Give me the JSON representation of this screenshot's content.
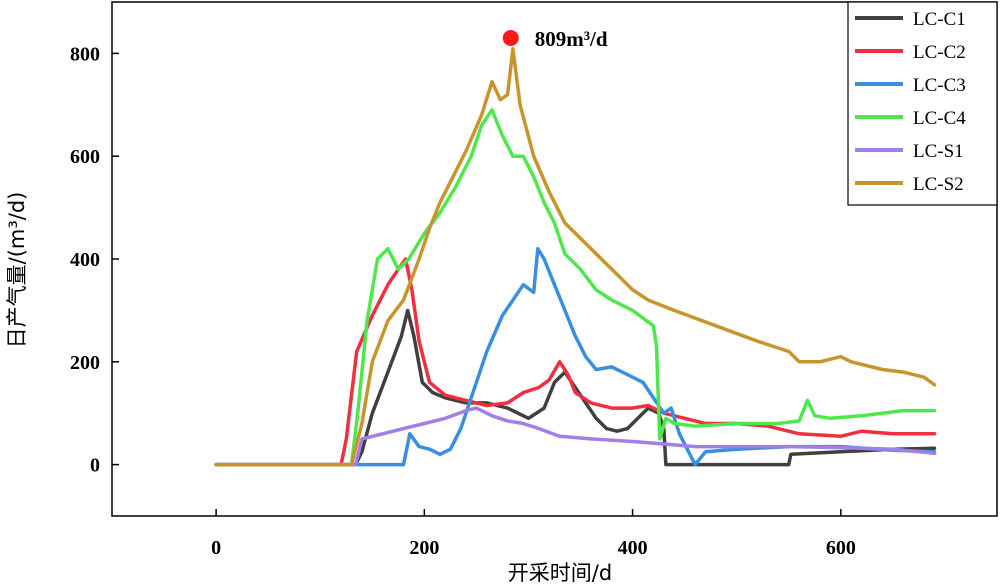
{
  "chart_data": {
    "type": "line",
    "xlabel": "开采时间/d",
    "ylabel": "日产气量/(m³/d)",
    "xlim": [
      -100,
      750
    ],
    "ylim": [
      -100,
      900
    ],
    "xticks": [
      0,
      200,
      400,
      600
    ],
    "yticks": [
      0,
      200,
      400,
      600,
      800
    ],
    "legend_position": "top-right",
    "grid": false,
    "annotation": {
      "text": "809m³/d",
      "x": 283,
      "y": 830,
      "marker_color": "#ff1a1a"
    },
    "series": [
      {
        "name": "LC-C1",
        "color": "#404040",
        "points": [
          [
            0,
            0
          ],
          [
            134,
            0
          ],
          [
            140,
            25
          ],
          [
            150,
            100
          ],
          [
            165,
            180
          ],
          [
            178,
            250
          ],
          [
            184,
            300
          ],
          [
            190,
            250
          ],
          [
            198,
            160
          ],
          [
            208,
            140
          ],
          [
            220,
            130
          ],
          [
            240,
            120
          ],
          [
            260,
            120
          ],
          [
            280,
            110
          ],
          [
            300,
            90
          ],
          [
            315,
            110
          ],
          [
            325,
            160
          ],
          [
            335,
            180
          ],
          [
            345,
            150
          ],
          [
            355,
            120
          ],
          [
            365,
            90
          ],
          [
            375,
            70
          ],
          [
            385,
            65
          ],
          [
            395,
            70
          ],
          [
            405,
            90
          ],
          [
            415,
            110
          ],
          [
            425,
            100
          ],
          [
            430,
            70
          ],
          [
            432,
            0
          ],
          [
            550,
            0
          ],
          [
            552,
            20
          ],
          [
            600,
            25
          ],
          [
            650,
            30
          ],
          [
            690,
            32
          ]
        ]
      },
      {
        "name": "LC-C2",
        "color": "#f03040",
        "points": [
          [
            0,
            0
          ],
          [
            120,
            0
          ],
          [
            125,
            50
          ],
          [
            135,
            220
          ],
          [
            150,
            290
          ],
          [
            165,
            350
          ],
          [
            175,
            380
          ],
          [
            182,
            400
          ],
          [
            188,
            340
          ],
          [
            195,
            240
          ],
          [
            205,
            160
          ],
          [
            220,
            135
          ],
          [
            240,
            125
          ],
          [
            260,
            115
          ],
          [
            280,
            120
          ],
          [
            295,
            140
          ],
          [
            310,
            150
          ],
          [
            320,
            165
          ],
          [
            330,
            200
          ],
          [
            338,
            175
          ],
          [
            345,
            140
          ],
          [
            360,
            120
          ],
          [
            380,
            110
          ],
          [
            400,
            110
          ],
          [
            415,
            115
          ],
          [
            420,
            110
          ],
          [
            430,
            100
          ],
          [
            450,
            90
          ],
          [
            470,
            80
          ],
          [
            500,
            80
          ],
          [
            530,
            75
          ],
          [
            560,
            60
          ],
          [
            600,
            55
          ],
          [
            620,
            65
          ],
          [
            650,
            60
          ],
          [
            690,
            60
          ]
        ]
      },
      {
        "name": "LC-C3",
        "color": "#3a8ee0",
        "points": [
          [
            0,
            0
          ],
          [
            180,
            0
          ],
          [
            186,
            60
          ],
          [
            195,
            35
          ],
          [
            205,
            30
          ],
          [
            215,
            20
          ],
          [
            225,
            30
          ],
          [
            235,
            70
          ],
          [
            245,
            130
          ],
          [
            260,
            220
          ],
          [
            275,
            290
          ],
          [
            285,
            320
          ],
          [
            295,
            350
          ],
          [
            305,
            335
          ],
          [
            309,
            420
          ],
          [
            315,
            400
          ],
          [
            325,
            350
          ],
          [
            335,
            300
          ],
          [
            345,
            250
          ],
          [
            355,
            210
          ],
          [
            365,
            185
          ],
          [
            380,
            190
          ],
          [
            395,
            175
          ],
          [
            410,
            160
          ],
          [
            420,
            130
          ],
          [
            430,
            100
          ],
          [
            437,
            110
          ],
          [
            445,
            60
          ],
          [
            455,
            20
          ],
          [
            460,
            0
          ],
          [
            470,
            25
          ],
          [
            500,
            30
          ],
          [
            550,
            35
          ],
          [
            600,
            35
          ],
          [
            650,
            28
          ],
          [
            690,
            25
          ]
        ]
      },
      {
        "name": "LC-C4",
        "color": "#4ee84e",
        "points": [
          [
            0,
            0
          ],
          [
            130,
            0
          ],
          [
            136,
            100
          ],
          [
            145,
            280
          ],
          [
            155,
            400
          ],
          [
            165,
            420
          ],
          [
            175,
            380
          ],
          [
            185,
            400
          ],
          [
            200,
            450
          ],
          [
            215,
            490
          ],
          [
            230,
            540
          ],
          [
            245,
            600
          ],
          [
            255,
            660
          ],
          [
            265,
            690
          ],
          [
            275,
            640
          ],
          [
            285,
            600
          ],
          [
            295,
            600
          ],
          [
            305,
            560
          ],
          [
            315,
            510
          ],
          [
            325,
            470
          ],
          [
            335,
            410
          ],
          [
            350,
            380
          ],
          [
            365,
            340
          ],
          [
            380,
            320
          ],
          [
            400,
            300
          ],
          [
            420,
            270
          ],
          [
            423,
            230
          ],
          [
            426,
            50
          ],
          [
            432,
            90
          ],
          [
            440,
            80
          ],
          [
            460,
            75
          ],
          [
            500,
            80
          ],
          [
            540,
            80
          ],
          [
            560,
            85
          ],
          [
            568,
            125
          ],
          [
            575,
            95
          ],
          [
            590,
            90
          ],
          [
            620,
            95
          ],
          [
            660,
            105
          ],
          [
            690,
            105
          ]
        ]
      },
      {
        "name": "LC-S1",
        "color": "#a080e8",
        "points": [
          [
            0,
            0
          ],
          [
            134,
            0
          ],
          [
            140,
            50
          ],
          [
            160,
            60
          ],
          [
            180,
            70
          ],
          [
            200,
            80
          ],
          [
            220,
            90
          ],
          [
            240,
            105
          ],
          [
            250,
            110
          ],
          [
            265,
            95
          ],
          [
            280,
            85
          ],
          [
            295,
            80
          ],
          [
            310,
            70
          ],
          [
            330,
            55
          ],
          [
            360,
            50
          ],
          [
            400,
            45
          ],
          [
            430,
            40
          ],
          [
            460,
            35
          ],
          [
            500,
            35
          ],
          [
            550,
            35
          ],
          [
            600,
            33
          ],
          [
            650,
            30
          ],
          [
            690,
            22
          ]
        ]
      },
      {
        "name": "LC-S2",
        "color": "#c8942c",
        "points": [
          [
            0,
            0
          ],
          [
            130,
            0
          ],
          [
            140,
            80
          ],
          [
            150,
            200
          ],
          [
            165,
            280
          ],
          [
            180,
            320
          ],
          [
            195,
            400
          ],
          [
            205,
            460
          ],
          [
            215,
            510
          ],
          [
            225,
            550
          ],
          [
            240,
            610
          ],
          [
            255,
            680
          ],
          [
            265,
            745
          ],
          [
            273,
            710
          ],
          [
            280,
            720
          ],
          [
            285,
            809
          ],
          [
            292,
            700
          ],
          [
            305,
            600
          ],
          [
            320,
            530
          ],
          [
            335,
            470
          ],
          [
            350,
            440
          ],
          [
            370,
            400
          ],
          [
            385,
            370
          ],
          [
            400,
            340
          ],
          [
            415,
            320
          ],
          [
            440,
            300
          ],
          [
            480,
            270
          ],
          [
            520,
            240
          ],
          [
            550,
            220
          ],
          [
            560,
            200
          ],
          [
            580,
            200
          ],
          [
            600,
            210
          ],
          [
            610,
            200
          ],
          [
            640,
            185
          ],
          [
            660,
            180
          ],
          [
            680,
            170
          ],
          [
            690,
            155
          ]
        ]
      }
    ]
  }
}
